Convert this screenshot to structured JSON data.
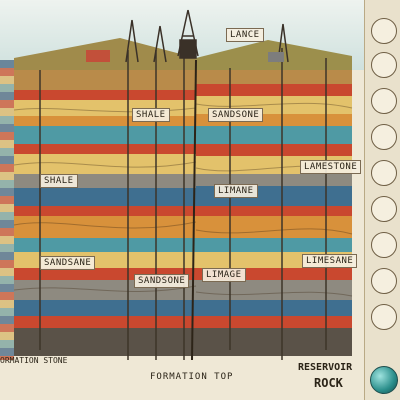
{
  "labels": {
    "lance": "LANCE",
    "shale_right": "SHALE",
    "sandstone_top_right": "SANDSONE",
    "shale_left": "SHALE",
    "sandstone_left": "SANDSANE",
    "sandstone_center": "SANDSONE",
    "limestone_right": "LAMESTONE",
    "limane": "LIMANE",
    "limage": "LIMAGE",
    "limesane": "LIMESANE"
  },
  "bottom": {
    "formation_stone": "ORMATION STONE",
    "formation_top": "FORMATION TOP",
    "reservoir": "RESERVOIR",
    "rock": "ROCK"
  },
  "colors": {
    "sky": "#d7e7e6",
    "grass": "#8a9b3a",
    "soil": "#b98b4a",
    "layer_red": "#c9482f",
    "layer_orange": "#d8913b",
    "layer_yellow": "#e3c26b",
    "layer_teal": "#4f9aa4",
    "layer_blue": "#3f6f90",
    "layer_gray": "#8e8a80",
    "layer_dark": "#5a5248"
  },
  "icons": [
    "drill-rig-icon",
    "oil-derrick-icon",
    "compass-icon",
    "water-drop-icon",
    "sample-core-icon"
  ]
}
